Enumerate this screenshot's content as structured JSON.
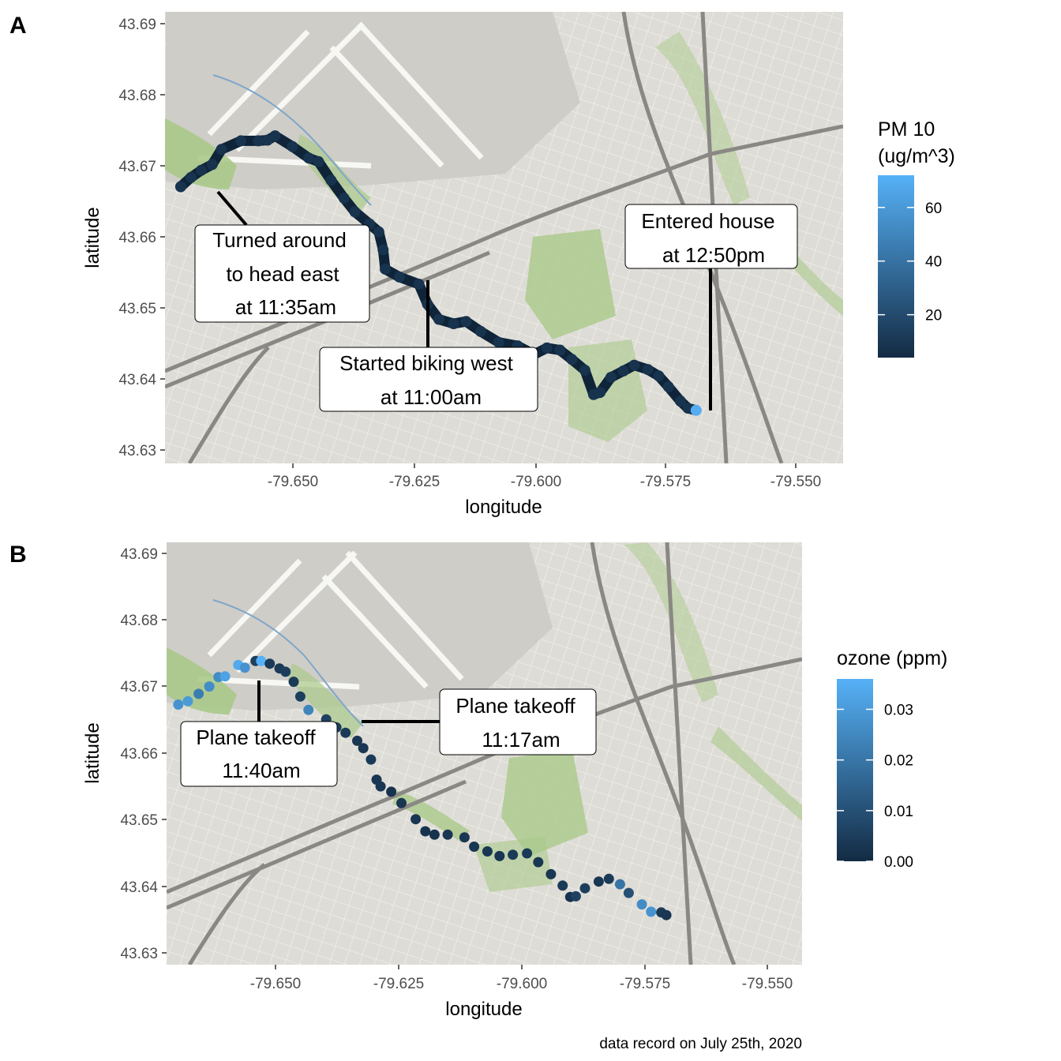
{
  "caption": "data record on July 25th, 2020",
  "colors": {
    "low": "#132B43",
    "high": "#56B1F7",
    "route_line": "#0f2438",
    "map_base": "#dedcd6",
    "map_green": "#a9c98a",
    "map_water": "#7fa6c9",
    "map_road": "#f8f8f4"
  },
  "panels": [
    {
      "id": "A",
      "label": "A",
      "xlabel": "longitude",
      "ylabel": "latitude",
      "xlim": [
        -79.664,
        -79.539
      ],
      "ylim": [
        43.628,
        43.691
      ],
      "xticks": [
        -79.65,
        -79.625,
        -79.6,
        -79.575,
        -79.55
      ],
      "xtick_labels": [
        "-79.650",
        "-79.625",
        "-79.600",
        "-79.575",
        "-79.550"
      ],
      "yticks": [
        43.63,
        43.64,
        43.65,
        43.66,
        43.67,
        43.68,
        43.69
      ],
      "ytick_labels": [
        "43.63",
        "43.64",
        "43.65",
        "43.66",
        "43.67",
        "43.68",
        "43.69"
      ],
      "legend": {
        "title_lines": [
          "PM 10",
          "(ug/m^3)"
        ],
        "min": 4,
        "max": 72,
        "breaks": [
          20,
          40,
          60
        ],
        "break_labels": [
          "20",
          "40",
          "60"
        ]
      },
      "callouts": [
        {
          "lines": [
            "Turned around",
            "to head east",
            "at 11:35am"
          ]
        },
        {
          "lines": [
            "Started biking west",
            "at 11:00am"
          ]
        },
        {
          "lines": [
            "Entered house",
            "at 12:50pm"
          ]
        }
      ]
    },
    {
      "id": "B",
      "label": "B",
      "xlabel": "longitude",
      "ylabel": "latitude",
      "xlim": [
        -79.6645,
        -79.5395
      ],
      "ylim": [
        43.628,
        43.691
      ],
      "xticks": [
        -79.65,
        -79.625,
        -79.6,
        -79.575,
        -79.55
      ],
      "xtick_labels": [
        "-79.650",
        "-79.625",
        "-79.600",
        "-79.575",
        "-79.550"
      ],
      "yticks": [
        43.63,
        43.64,
        43.65,
        43.66,
        43.67,
        43.68,
        43.69
      ],
      "ytick_labels": [
        "43.63",
        "43.64",
        "43.65",
        "43.66",
        "43.67",
        "43.68",
        "43.69"
      ],
      "legend": {
        "title_lines": [
          "ozone (ppm)"
        ],
        "min": 0.0,
        "max": 0.036,
        "breaks": [
          0.0,
          0.01,
          0.02,
          0.03
        ],
        "break_labels": [
          "0.00",
          "0.01",
          "0.02",
          "0.03"
        ]
      },
      "callouts": [
        {
          "lines": [
            "Plane takeoff",
            "11:40am"
          ]
        },
        {
          "lines": [
            "Plane takeoff",
            "11:17am"
          ]
        }
      ]
    }
  ],
  "chart_data": [
    {
      "type": "scatter",
      "title": "",
      "xlabel": "longitude",
      "ylabel": "latitude",
      "xlim": [
        -79.664,
        -79.539
      ],
      "ylim": [
        43.628,
        43.691
      ],
      "color_variable": "PM 10 (ug/m^3)",
      "points": [
        {
          "lon": -79.5661,
          "lat": 43.6354,
          "value": 70
        },
        {
          "lon": -79.5676,
          "lat": 43.6357,
          "value": 8
        },
        {
          "lon": -79.569,
          "lat": 43.6367,
          "value": 8
        },
        {
          "lon": -79.5712,
          "lat": 43.6387,
          "value": 8
        },
        {
          "lon": -79.573,
          "lat": 43.6402,
          "value": 8
        },
        {
          "lon": -79.575,
          "lat": 43.6411,
          "value": 8
        },
        {
          "lon": -79.5775,
          "lat": 43.6417,
          "value": 8
        },
        {
          "lon": -79.5795,
          "lat": 43.6409,
          "value": 8
        },
        {
          "lon": -79.5818,
          "lat": 43.64,
          "value": 8
        },
        {
          "lon": -79.5838,
          "lat": 43.6379,
          "value": 8
        },
        {
          "lon": -79.585,
          "lat": 43.6376,
          "value": 8
        },
        {
          "lon": -79.5866,
          "lat": 43.641,
          "value": 8
        },
        {
          "lon": -79.589,
          "lat": 43.6425,
          "value": 8
        },
        {
          "lon": -79.5912,
          "lat": 43.6438,
          "value": 8
        },
        {
          "lon": -79.5936,
          "lat": 43.6441,
          "value": 8
        },
        {
          "lon": -79.596,
          "lat": 43.6432,
          "value": 8
        },
        {
          "lon": -79.599,
          "lat": 43.6444,
          "value": 8
        },
        {
          "lon": -79.6025,
          "lat": 43.6449,
          "value": 8
        },
        {
          "lon": -79.6058,
          "lat": 43.6464,
          "value": 8
        },
        {
          "lon": -79.6085,
          "lat": 43.6478,
          "value": 8
        },
        {
          "lon": -79.6108,
          "lat": 43.6475,
          "value": 8
        },
        {
          "lon": -79.6135,
          "lat": 43.6481,
          "value": 8
        },
        {
          "lon": -79.6156,
          "lat": 43.6502,
          "value": 8
        },
        {
          "lon": -79.6172,
          "lat": 43.653,
          "value": 8
        },
        {
          "lon": -79.6208,
          "lat": 43.654,
          "value": 8
        },
        {
          "lon": -79.6234,
          "lat": 43.6551,
          "value": 8
        },
        {
          "lon": -79.6238,
          "lat": 43.6578,
          "value": 8
        },
        {
          "lon": -79.6246,
          "lat": 43.6603,
          "value": 8
        },
        {
          "lon": -79.6263,
          "lat": 43.6614,
          "value": 8
        },
        {
          "lon": -79.629,
          "lat": 43.6631,
          "value": 8
        },
        {
          "lon": -79.631,
          "lat": 43.665,
          "value": 8
        },
        {
          "lon": -79.6334,
          "lat": 43.6675,
          "value": 8
        },
        {
          "lon": -79.6357,
          "lat": 43.6701,
          "value": 8
        },
        {
          "lon": -79.6375,
          "lat": 43.6706,
          "value": 8
        },
        {
          "lon": -79.6405,
          "lat": 43.6722,
          "value": 8
        },
        {
          "lon": -79.6437,
          "lat": 43.6737,
          "value": 8
        },
        {
          "lon": -79.6451,
          "lat": 43.6731,
          "value": 8
        },
        {
          "lon": -79.6468,
          "lat": 43.673,
          "value": 8
        },
        {
          "lon": -79.65,
          "lat": 43.673,
          "value": 8
        },
        {
          "lon": -79.6536,
          "lat": 43.6718,
          "value": 8
        },
        {
          "lon": -79.6553,
          "lat": 43.6697,
          "value": 8
        },
        {
          "lon": -79.6573,
          "lat": 43.6689,
          "value": 8
        },
        {
          "lon": -79.6592,
          "lat": 43.6679,
          "value": 8
        },
        {
          "lon": -79.6611,
          "lat": 43.6666,
          "value": 8
        }
      ]
    },
    {
      "type": "scatter",
      "title": "",
      "xlabel": "longitude",
      "ylabel": "latitude",
      "xlim": [
        -79.6645,
        -79.5395
      ],
      "ylim": [
        43.628,
        43.691
      ],
      "color_variable": "ozone (ppm)",
      "points": [
        {
          "lon": -79.5662,
          "lat": 43.6354,
          "value": 0.003
        },
        {
          "lon": -79.5672,
          "lat": 43.6358,
          "value": 0.004
        },
        {
          "lon": -79.5692,
          "lat": 43.6359,
          "value": 0.028
        },
        {
          "lon": -79.571,
          "lat": 43.637,
          "value": 0.026
        },
        {
          "lon": -79.5736,
          "lat": 43.6387,
          "value": 0.01
        },
        {
          "lon": -79.5753,
          "lat": 43.64,
          "value": 0.02
        },
        {
          "lon": -79.5775,
          "lat": 43.6408,
          "value": 0.004
        },
        {
          "lon": -79.5795,
          "lat": 43.6404,
          "value": 0.003
        },
        {
          "lon": -79.5822,
          "lat": 43.6394,
          "value": 0.005
        },
        {
          "lon": -79.584,
          "lat": 43.6382,
          "value": 0.006
        },
        {
          "lon": -79.5851,
          "lat": 43.6381,
          "value": 0.002
        },
        {
          "lon": -79.5866,
          "lat": 43.6398,
          "value": 0.004
        },
        {
          "lon": -79.5889,
          "lat": 43.6415,
          "value": 0.003
        },
        {
          "lon": -79.5914,
          "lat": 43.6433,
          "value": 0.003
        },
        {
          "lon": -79.5936,
          "lat": 43.6446,
          "value": 0.004
        },
        {
          "lon": -79.5964,
          "lat": 43.6444,
          "value": 0.004
        },
        {
          "lon": -79.599,
          "lat": 43.6442,
          "value": 0.003
        },
        {
          "lon": -79.6014,
          "lat": 43.6449,
          "value": 0.003
        },
        {
          "lon": -79.604,
          "lat": 43.6456,
          "value": 0.003
        },
        {
          "lon": -79.6059,
          "lat": 43.647,
          "value": 0.003
        },
        {
          "lon": -79.6092,
          "lat": 43.6474,
          "value": 0.003
        },
        {
          "lon": -79.6118,
          "lat": 43.6474,
          "value": 0.002
        },
        {
          "lon": -79.6136,
          "lat": 43.6479,
          "value": 0.002
        },
        {
          "lon": -79.6155,
          "lat": 43.6497,
          "value": 0.003
        },
        {
          "lon": -79.6183,
          "lat": 43.6521,
          "value": 0.003
        },
        {
          "lon": -79.6203,
          "lat": 43.6538,
          "value": 0.002
        },
        {
          "lon": -79.6224,
          "lat": 43.6546,
          "value": 0.003
        },
        {
          "lon": -79.6232,
          "lat": 43.6556,
          "value": 0.003
        },
        {
          "lon": -79.6243,
          "lat": 43.6586,
          "value": 0.004
        },
        {
          "lon": -79.6258,
          "lat": 43.6603,
          "value": 0.003
        },
        {
          "lon": -79.627,
          "lat": 43.6614,
          "value": 0.003
        },
        {
          "lon": -79.6293,
          "lat": 43.6626,
          "value": 0.004
        },
        {
          "lon": -79.6311,
          "lat": 43.6634,
          "value": 0.005
        },
        {
          "lon": -79.6331,
          "lat": 43.6646,
          "value": 0.006
        },
        {
          "lon": -79.6366,
          "lat": 43.666,
          "value": 0.024
        },
        {
          "lon": -79.6382,
          "lat": 43.668,
          "value": 0.005
        },
        {
          "lon": -79.6395,
          "lat": 43.6702,
          "value": 0.004
        },
        {
          "lon": -79.6411,
          "lat": 43.6717,
          "value": 0.005
        },
        {
          "lon": -79.6423,
          "lat": 43.6722,
          "value": 0.004
        },
        {
          "lon": -79.6442,
          "lat": 43.6729,
          "value": 0.004
        },
        {
          "lon": -79.6459,
          "lat": 43.6733,
          "value": 0.036
        },
        {
          "lon": -79.647,
          "lat": 43.6733,
          "value": 0.006
        },
        {
          "lon": -79.6491,
          "lat": 43.6723,
          "value": 0.028
        },
        {
          "lon": -79.6504,
          "lat": 43.6727,
          "value": 0.034
        },
        {
          "lon": -79.653,
          "lat": 43.671,
          "value": 0.032
        },
        {
          "lon": -79.6543,
          "lat": 43.6709,
          "value": 0.026
        },
        {
          "lon": -79.6561,
          "lat": 43.6695,
          "value": 0.026
        },
        {
          "lon": -79.6582,
          "lat": 43.6684,
          "value": 0.022
        },
        {
          "lon": -79.6603,
          "lat": 43.6673,
          "value": 0.03
        },
        {
          "lon": -79.6622,
          "lat": 43.6668,
          "value": 0.028
        }
      ]
    }
  ]
}
